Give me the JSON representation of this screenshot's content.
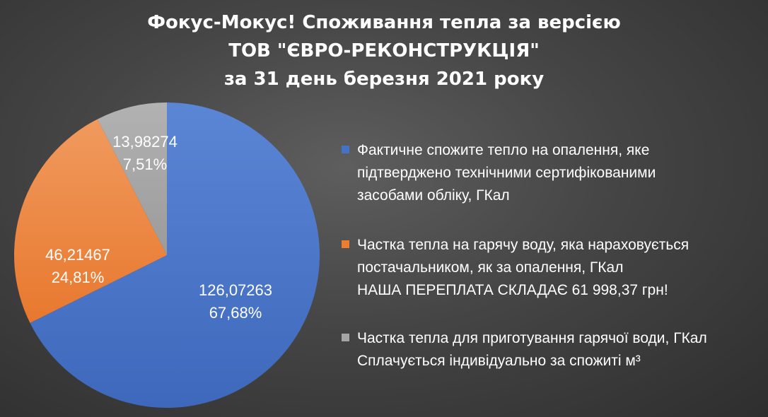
{
  "chart_data": {
    "type": "pie",
    "title": [
      "Фокус-Мокус!  Споживання тепла за версією",
      "ТОВ \"ЄВРО-РЕКОНСТРУКЦІЯ\"",
      "за 31 день березня 2021 року"
    ],
    "start_angle_deg": 0,
    "direction": "clockwise",
    "slices": [
      {
        "value": 126.07263,
        "value_label": "126,07263",
        "percent_label": "67,68%",
        "color": "#4472c4",
        "legend": [
          "Фактичне спожите тепло на опалення, яке",
          "підтверджено технічними сертифікованими",
          "засобами обліку, ГКал"
        ]
      },
      {
        "value": 46.21467,
        "value_label": "46,21467",
        "percent_label": "24,81%",
        "color": "#ed7d31",
        "legend": [
          "Частка тепла на гарячу воду, яка нараховується",
          "постачальником, як за опалення, ГКал",
          "НАША ПЕРЕПЛАТА СКЛАДАЄ 61 998,37 грн!"
        ]
      },
      {
        "value": 13.98274,
        "value_label": "13,98274",
        "percent_label": "7,51%",
        "color": "#a5a5a5",
        "legend": [
          "Частка тепла для приготування гарячої води, ГКал",
          "Сплачується індивідуально за спожиті м³"
        ]
      }
    ],
    "legend_position": "right"
  }
}
